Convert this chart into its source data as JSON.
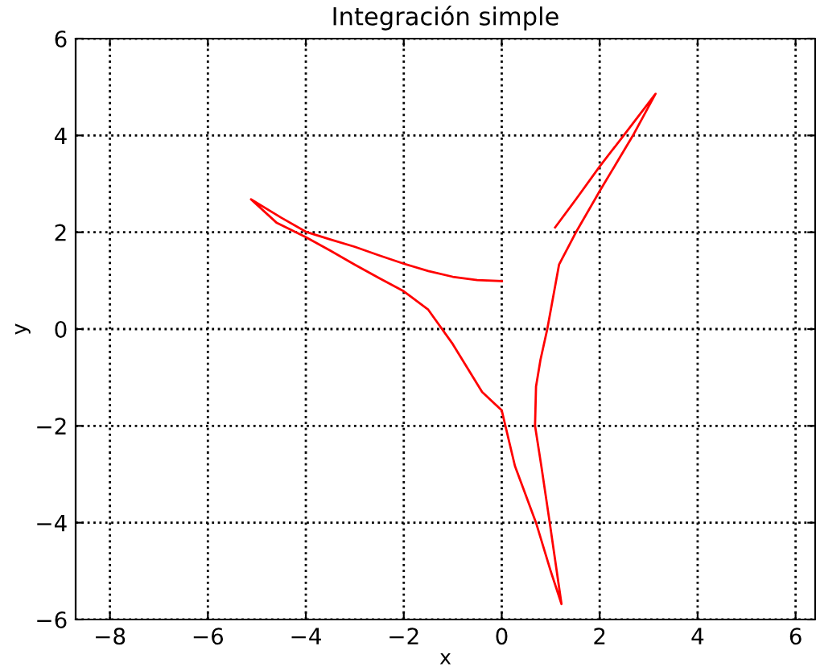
{
  "chart_data": {
    "type": "line",
    "title": "Integración simple",
    "xlabel": "x",
    "ylabel": "y",
    "x": [
      0,
      -0.5,
      -1,
      -1.5,
      -2,
      -2.5,
      -3,
      -3.5,
      -4,
      -4.5,
      -5.12,
      -4.6,
      -4,
      -3.5,
      -3,
      -2.5,
      -2,
      -1.5,
      -1,
      -0.4,
      0,
      0.27,
      0.7,
      1.0,
      1.22,
      0.98,
      0.81,
      0.68,
      0.7,
      0.79,
      0.93,
      1.17,
      1.51,
      2.0,
      2.68,
      3.14,
      2.49,
      2.0,
      1.53,
      1.09
    ],
    "values": [
      0.99,
      1.01,
      1.08,
      1.2,
      1.35,
      1.52,
      1.7,
      1.85,
      2.01,
      2.3,
      2.68,
      2.2,
      1.9,
      1.62,
      1.33,
      1.05,
      0.78,
      0.4,
      -0.31,
      -1.3,
      -1.68,
      -2.83,
      -4.0,
      -5.0,
      -5.68,
      -4.0,
      -2.84,
      -2.0,
      -1.19,
      -0.64,
      0.0,
      1.33,
      1.99,
      2.85,
      4.0,
      4.86,
      4.0,
      3.36,
      2.7,
      2.1
    ],
    "color": "#ff0000",
    "line_style": "solid",
    "marker": "none",
    "xlim": [
      -8.7,
      6.4
    ],
    "ylim": [
      -6,
      6
    ],
    "xticks": [
      -8,
      -6,
      -4,
      -2,
      0,
      2,
      4,
      6
    ],
    "yticks": [
      -6,
      -4,
      -2,
      0,
      2,
      4,
      6
    ],
    "grid": true
  }
}
